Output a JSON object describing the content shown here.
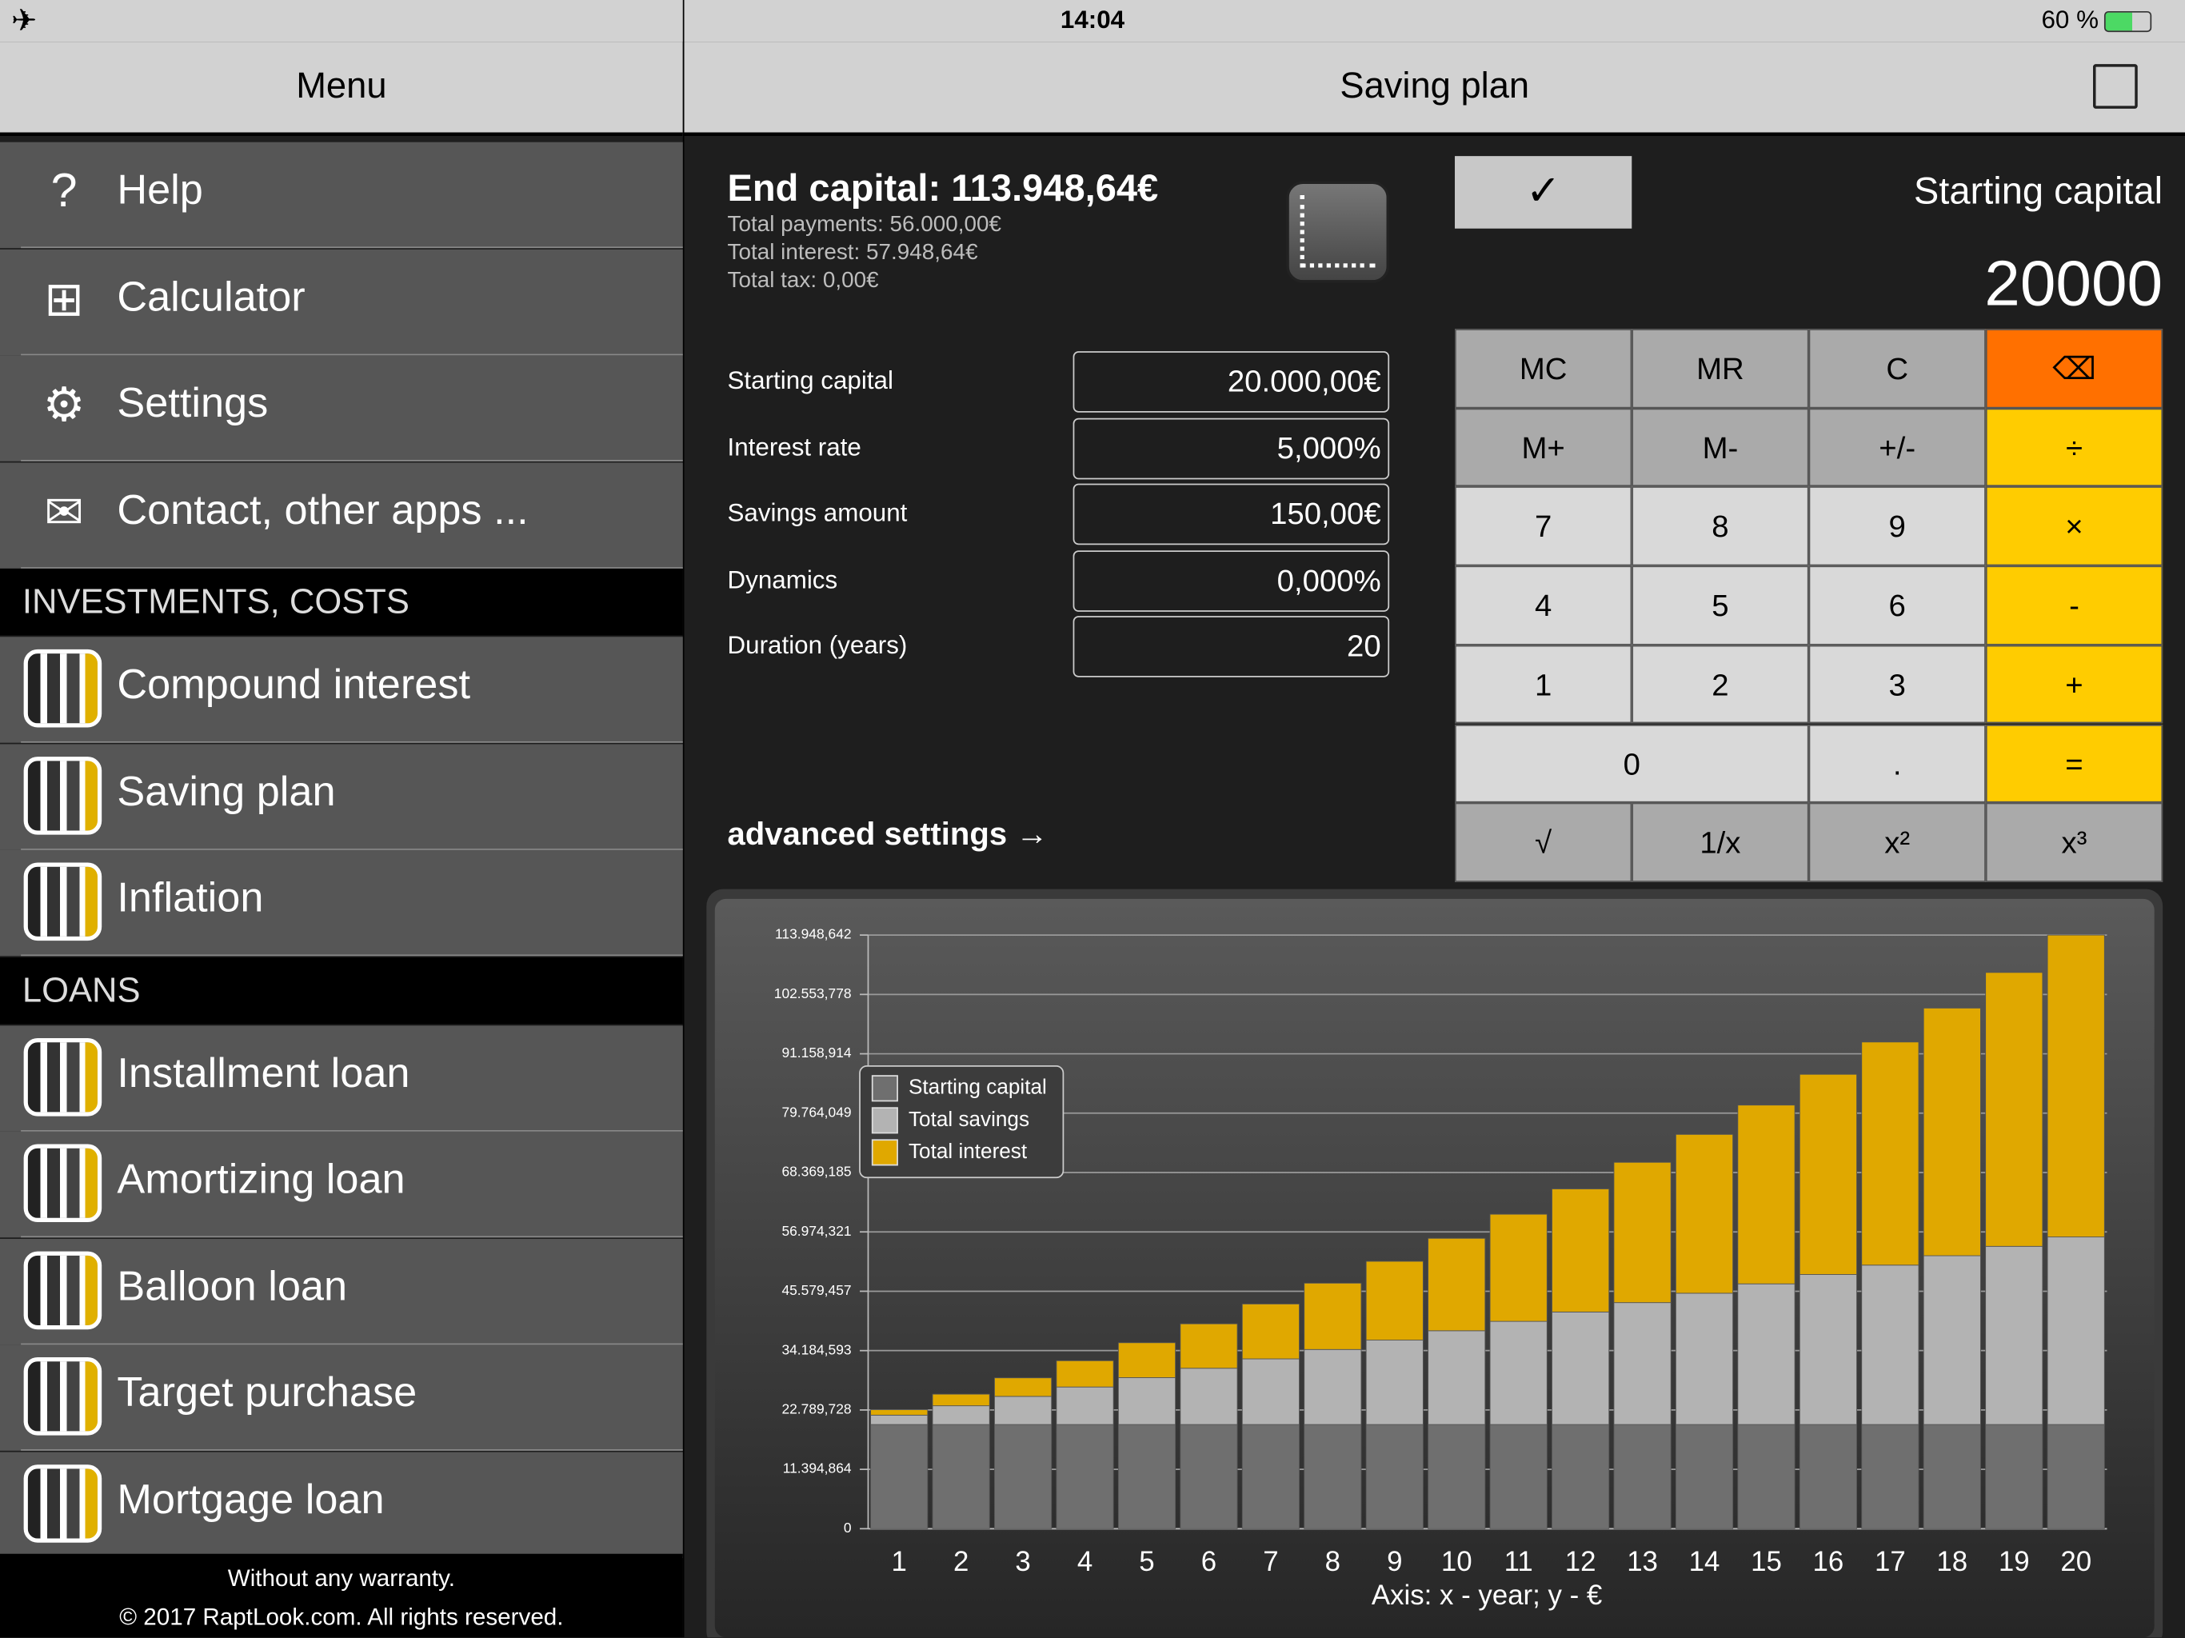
{
  "status_bar": {
    "time": "14:04",
    "battery": "60 %"
  },
  "menu": {
    "title": "Menu",
    "items": [
      "Help",
      "Calculator",
      "Settings",
      "Contact, other apps ..."
    ],
    "sections": [
      {
        "title": "INVESTMENTS, COSTS",
        "items": [
          "Compound interest",
          "Saving plan",
          "Inflation"
        ]
      },
      {
        "title": "LOANS",
        "items": [
          "Installment loan",
          "Amortizing loan",
          "Balloon loan",
          "Target purchase",
          "Mortgage loan"
        ]
      }
    ],
    "footer": [
      "Without any warranty.",
      "© 2017 RaptLook.com. All rights reserved."
    ]
  },
  "main": {
    "title": "Saving plan",
    "summary": {
      "end_capital": "End capital: 113.948,64€",
      "lines": [
        "Total payments: 56.000,00€",
        "Total interest: 57.948,64€",
        "Total tax: 0,00€"
      ]
    },
    "fields": [
      {
        "label": "Starting capital",
        "value": "20.000,00€"
      },
      {
        "label": "Interest rate",
        "value": "5,000%"
      },
      {
        "label": "Savings amount",
        "value": "150,00€"
      },
      {
        "label": "Dynamics",
        "value": "0,000%"
      },
      {
        "label": "Duration (years)",
        "value": "20"
      }
    ],
    "advanced": "advanced settings →",
    "calculator": {
      "check": "✓",
      "display_label": "Starting capital",
      "display_value": "20000",
      "keys": [
        [
          "MC",
          "MR",
          "C",
          "⌫"
        ],
        [
          "M+",
          "M-",
          "+/-",
          "÷"
        ],
        [
          "7",
          "8",
          "9",
          "×"
        ],
        [
          "4",
          "5",
          "6",
          "-"
        ],
        [
          "1",
          "2",
          "3",
          "+"
        ],
        [
          "0",
          ".",
          "="
        ],
        [
          "√",
          "1/x",
          "x²",
          "x³"
        ]
      ]
    }
  },
  "chart_data": {
    "type": "stacked-bar",
    "x_label": "Axis: x - year; y - €",
    "categories": [
      "1",
      "2",
      "3",
      "4",
      "5",
      "6",
      "7",
      "8",
      "9",
      "10",
      "11",
      "12",
      "13",
      "14",
      "15",
      "16",
      "17",
      "18",
      "19",
      "20"
    ],
    "series": [
      {
        "name": "Starting capital",
        "color": "#6f6f6f",
        "values": [
          20000,
          20000,
          20000,
          20000,
          20000,
          20000,
          20000,
          20000,
          20000,
          20000,
          20000,
          20000,
          20000,
          20000,
          20000,
          20000,
          20000,
          20000,
          20000,
          20000
        ]
      },
      {
        "name": "Total savings",
        "color": "#b3b3b3",
        "values": [
          1800,
          3600,
          5400,
          7200,
          9000,
          10800,
          12600,
          14400,
          16200,
          18000,
          19800,
          21600,
          23400,
          25200,
          27000,
          28800,
          30600,
          32400,
          34200,
          36000
        ]
      },
      {
        "name": "Total interest",
        "color": "#e0a800",
        "values": [
          1041,
          2225,
          3557,
          5046,
          6700,
          8527,
          10534,
          12732,
          15129,
          17737,
          20565,
          23625,
          26928,
          30485,
          34311,
          38418,
          42821,
          47533,
          52571,
          57949
        ]
      }
    ],
    "ylim": [
      0,
      113948.642
    ],
    "yticks": [
      0,
      {
        "value": 11394.864,
        "label": "11.394,864"
      },
      {
        "value": 22789.728,
        "label": "22.789,728"
      },
      {
        "value": 34184.593,
        "label": "34.184,593"
      },
      {
        "value": 45579.457,
        "label": "45.579,457"
      },
      {
        "value": 56974.321,
        "label": "56.974,321"
      },
      {
        "value": 68369.185,
        "label": "68.369,185"
      },
      {
        "value": 79764.049,
        "label": "79.764,049"
      },
      {
        "value": 91158.914,
        "label": "91.158,914"
      },
      {
        "value": 102553.778,
        "label": "102.553,778"
      },
      {
        "value": 113948.642,
        "label": "113.948,642"
      }
    ],
    "grid": true,
    "legend": "top-left"
  }
}
